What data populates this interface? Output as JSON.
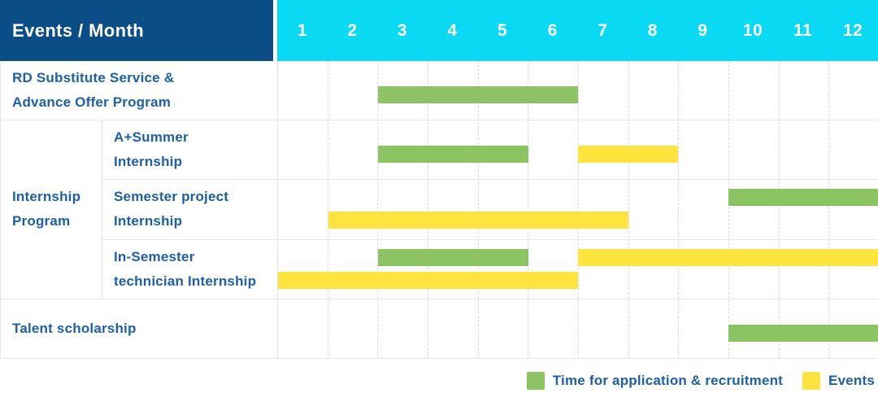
{
  "header": {
    "corner_label": "Events / Month",
    "months": [
      "1",
      "2",
      "3",
      "4",
      "5",
      "6",
      "7",
      "8",
      "9",
      "10",
      "11",
      "12"
    ]
  },
  "colors": {
    "navy": "#0B4D86",
    "cyan": "#09D9F2",
    "text_blue": "#1E5FA5",
    "green": "#8CC463",
    "yellow": "#FFE33E"
  },
  "group_label": "Internship\nProgram",
  "rows": [
    {
      "label": "RD Substitute Service &\nAdvance Offer Program",
      "bars": [
        {
          "color": "green",
          "start": 3,
          "end": 6,
          "line": "single"
        }
      ]
    },
    {
      "label": "A+Summer\nInternship",
      "bars": [
        {
          "color": "green",
          "start": 3,
          "end": 5,
          "line": "single"
        },
        {
          "color": "yellow",
          "start": 7,
          "end": 8,
          "line": "single"
        }
      ]
    },
    {
      "label": "Semester project\nInternship",
      "bars": [
        {
          "color": "green",
          "start": 10,
          "end": 12,
          "line": "top"
        },
        {
          "color": "yellow",
          "start": 2,
          "end": 7,
          "line": "bottom"
        }
      ]
    },
    {
      "label": "In-Semester\ntechnician Internship",
      "bars": [
        {
          "color": "green",
          "start": 3,
          "end": 5,
          "line": "top"
        },
        {
          "color": "yellow",
          "start": 7,
          "end": 12,
          "line": "top"
        },
        {
          "color": "yellow",
          "start": 1,
          "end": 6,
          "line": "bottom"
        }
      ]
    },
    {
      "label": "Talent scholarship",
      "bars": [
        {
          "color": "green",
          "start": 10,
          "end": 12,
          "line": "single"
        }
      ]
    }
  ],
  "legend": {
    "items": [
      {
        "color": "green",
        "label": "Time for application & recruitment"
      },
      {
        "color": "yellow",
        "label": "Events"
      }
    ]
  },
  "chart_data": {
    "type": "bar",
    "variant": "gantt",
    "title": "Events / Month",
    "xlabel": "Month",
    "x_ticks": [
      1,
      2,
      3,
      4,
      5,
      6,
      7,
      8,
      9,
      10,
      11,
      12
    ],
    "series_legend": [
      "Time for application & recruitment",
      "Events"
    ],
    "series_colors": {
      "Time for application & recruitment": "#8CC463",
      "Events": "#FFE33E"
    },
    "tasks": [
      {
        "row": "RD Substitute Service & Advance Offer Program",
        "group": null,
        "bars": [
          {
            "series": "Time for application & recruitment",
            "start_month": 3,
            "end_month": 6
          }
        ]
      },
      {
        "row": "A+Summer Internship",
        "group": "Internship Program",
        "bars": [
          {
            "series": "Time for application & recruitment",
            "start_month": 3,
            "end_month": 5
          },
          {
            "series": "Events",
            "start_month": 7,
            "end_month": 8
          }
        ]
      },
      {
        "row": "Semester project Internship",
        "group": "Internship Program",
        "bars": [
          {
            "series": "Time for application & recruitment",
            "start_month": 10,
            "end_month": 12
          },
          {
            "series": "Events",
            "start_month": 2,
            "end_month": 7
          }
        ]
      },
      {
        "row": "In-Semester technician Internship",
        "group": "Internship Program",
        "bars": [
          {
            "series": "Time for application & recruitment",
            "start_month": 3,
            "end_month": 5
          },
          {
            "series": "Events",
            "start_month": 7,
            "end_month": 12
          },
          {
            "series": "Events",
            "start_month": 1,
            "end_month": 6
          }
        ]
      },
      {
        "row": "Talent scholarship",
        "group": null,
        "bars": [
          {
            "series": "Time for application & recruitment",
            "start_month": 10,
            "end_month": 12
          }
        ]
      }
    ],
    "legend_position": "bottom-right",
    "grid": "vertical-dashed-per-month"
  }
}
